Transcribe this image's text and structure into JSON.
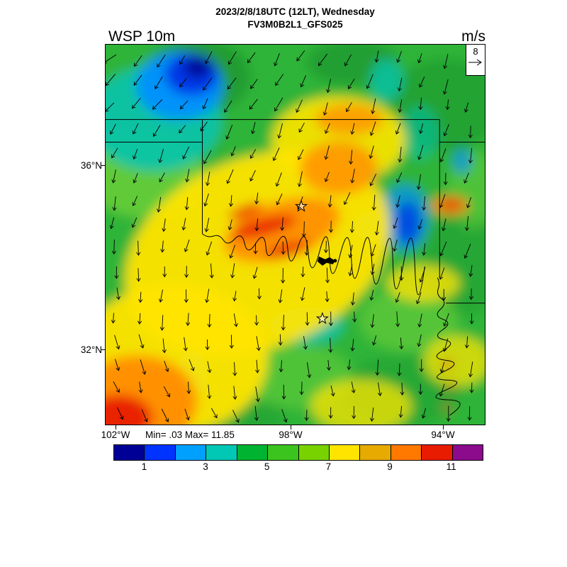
{
  "header": {
    "title_line1": "2023/2/8/18UTC (12LT), Wednesday",
    "title_line2": "FV3M0B2L1_GFS025",
    "variable_label": "WSP 10m",
    "units_label": "m/s"
  },
  "map": {
    "lat_tick_labels": [
      "36°N",
      "32°N"
    ],
    "lon_tick_labels": [
      "102°W",
      "98°W",
      "94°W"
    ],
    "stats_text": "Min= .03 Max= 11.85",
    "reference_vector_label": "8"
  },
  "colorbar": {
    "colors": [
      "#000096",
      "#0033ff",
      "#00a0ff",
      "#00c8b4",
      "#00b432",
      "#3cc41e",
      "#78d200",
      "#ffe400",
      "#e6aa00",
      "#ff7800",
      "#e81c00",
      "#8c0a8c"
    ],
    "tick_labels": [
      "1",
      "3",
      "5",
      "7",
      "9",
      "11"
    ]
  },
  "chart_data": {
    "type": "heatmap",
    "title": "WSP 10m",
    "subtitle_line1": "2023/2/8/18UTC (12LT), Wednesday",
    "subtitle_line2": "FV3M0B2L1_GFS025",
    "units": "m/s",
    "min": 0.03,
    "max": 11.85,
    "x_axis": {
      "tick_labels": [
        "102°W",
        "98°W",
        "94°W"
      ]
    },
    "y_axis": {
      "tick_labels": [
        "36°N",
        "32°N"
      ]
    },
    "colorbar": {
      "labeled_levels": [
        1,
        3,
        5,
        7,
        9,
        11
      ],
      "cell_bounds": [
        0,
        1,
        2,
        3,
        4,
        5,
        6,
        7,
        8,
        9,
        10,
        11,
        12
      ],
      "colors": [
        "#000096",
        "#0033ff",
        "#00a0ff",
        "#00c8b4",
        "#00b432",
        "#3cc41e",
        "#78d200",
        "#ffe400",
        "#e6aa00",
        "#ff7800",
        "#e81c00",
        "#8c0a8c"
      ]
    },
    "overlay": "10m wind vector arrows, reference vector 8 m/s",
    "legend_position": "bottom"
  }
}
